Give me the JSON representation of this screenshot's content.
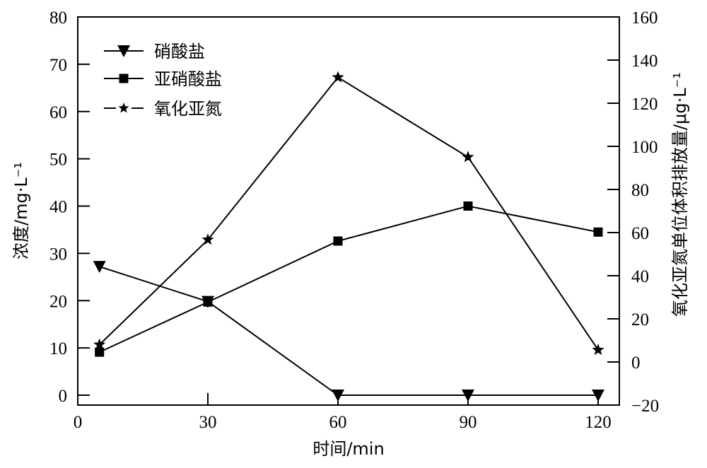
{
  "chart_data": {
    "type": "line",
    "title": "",
    "xlabel": "时间/min",
    "ylabel": "浓度/mg·L⁻¹",
    "ylabel_right": "氧化亚氮单位体积排放量/μg·L⁻¹",
    "x": [
      5,
      30,
      60,
      90,
      120
    ],
    "xlim": [
      0,
      125
    ],
    "ylim": [
      -3.5,
      80
    ],
    "ylim_right": [
      -20,
      160
    ],
    "x_ticks": [
      "0",
      "30",
      "60",
      "90",
      "120"
    ],
    "y_ticks": [
      "0",
      "10",
      "20",
      "30",
      "40",
      "50",
      "60",
      "70",
      "80"
    ],
    "y_ticks_right": [
      "−20",
      "0",
      "20",
      "40",
      "60",
      "80",
      "100",
      "120",
      "140",
      "160"
    ],
    "grid": false,
    "legend_position": "upper left",
    "series": [
      {
        "name": "硝酸盐",
        "axis": "left",
        "marker": "triangle-down",
        "values": [
          27.2,
          19.8,
          0,
          0,
          0
        ]
      },
      {
        "name": "亚硝酸盐",
        "axis": "left",
        "marker": "square",
        "values": [
          9.1,
          19.7,
          32.6,
          40.0,
          34.5
        ]
      },
      {
        "name": "氧化亚氮",
        "axis": "right",
        "marker": "star",
        "values": [
          8.0,
          56.7,
          132.0,
          95.0,
          5.6
        ]
      }
    ]
  },
  "colors": {
    "line": "#000000",
    "background": "#ffffff"
  }
}
